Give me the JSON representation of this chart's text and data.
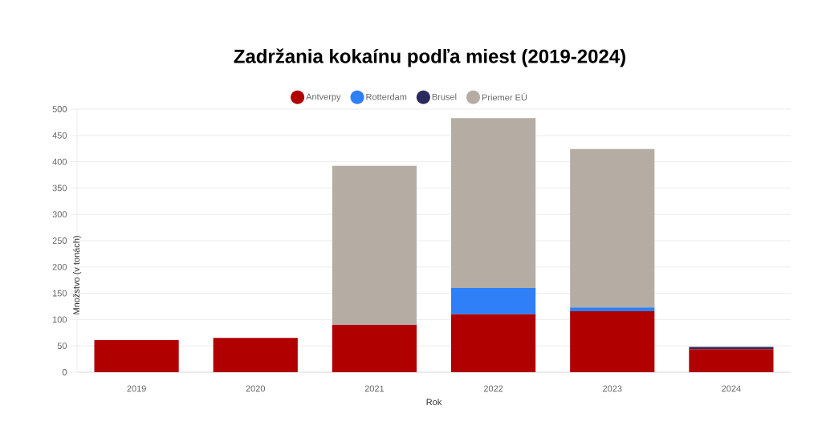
{
  "chart_data": {
    "type": "bar",
    "stacked": true,
    "title": "Zadržania kokaínu podľa miest (2019-2024)",
    "xlabel": "Rok",
    "ylabel": "Množstvo (v tonách)",
    "categories": [
      "2019",
      "2020",
      "2021",
      "2022",
      "2023",
      "2024"
    ],
    "series": [
      {
        "name": "Antverpy",
        "color": "#b00000",
        "values": [
          61,
          65,
          90,
          110,
          116,
          44
        ]
      },
      {
        "name": "Rotterdam",
        "color": "#2f7ff8",
        "values": [
          null,
          null,
          null,
          50,
          7,
          null
        ]
      },
      {
        "name": "Brusel",
        "color": "#2b2a5e",
        "values": [
          null,
          null,
          null,
          null,
          null,
          4
        ]
      },
      {
        "name": "Priemer EÚ",
        "color": "#b5aca4",
        "values": [
          null,
          null,
          302,
          323,
          301,
          null
        ]
      }
    ],
    "ylim": [
      0,
      500
    ],
    "yticks": [
      0,
      50,
      100,
      150,
      200,
      250,
      300,
      350,
      400,
      450,
      500
    ],
    "grid": "y",
    "legend": "top"
  }
}
